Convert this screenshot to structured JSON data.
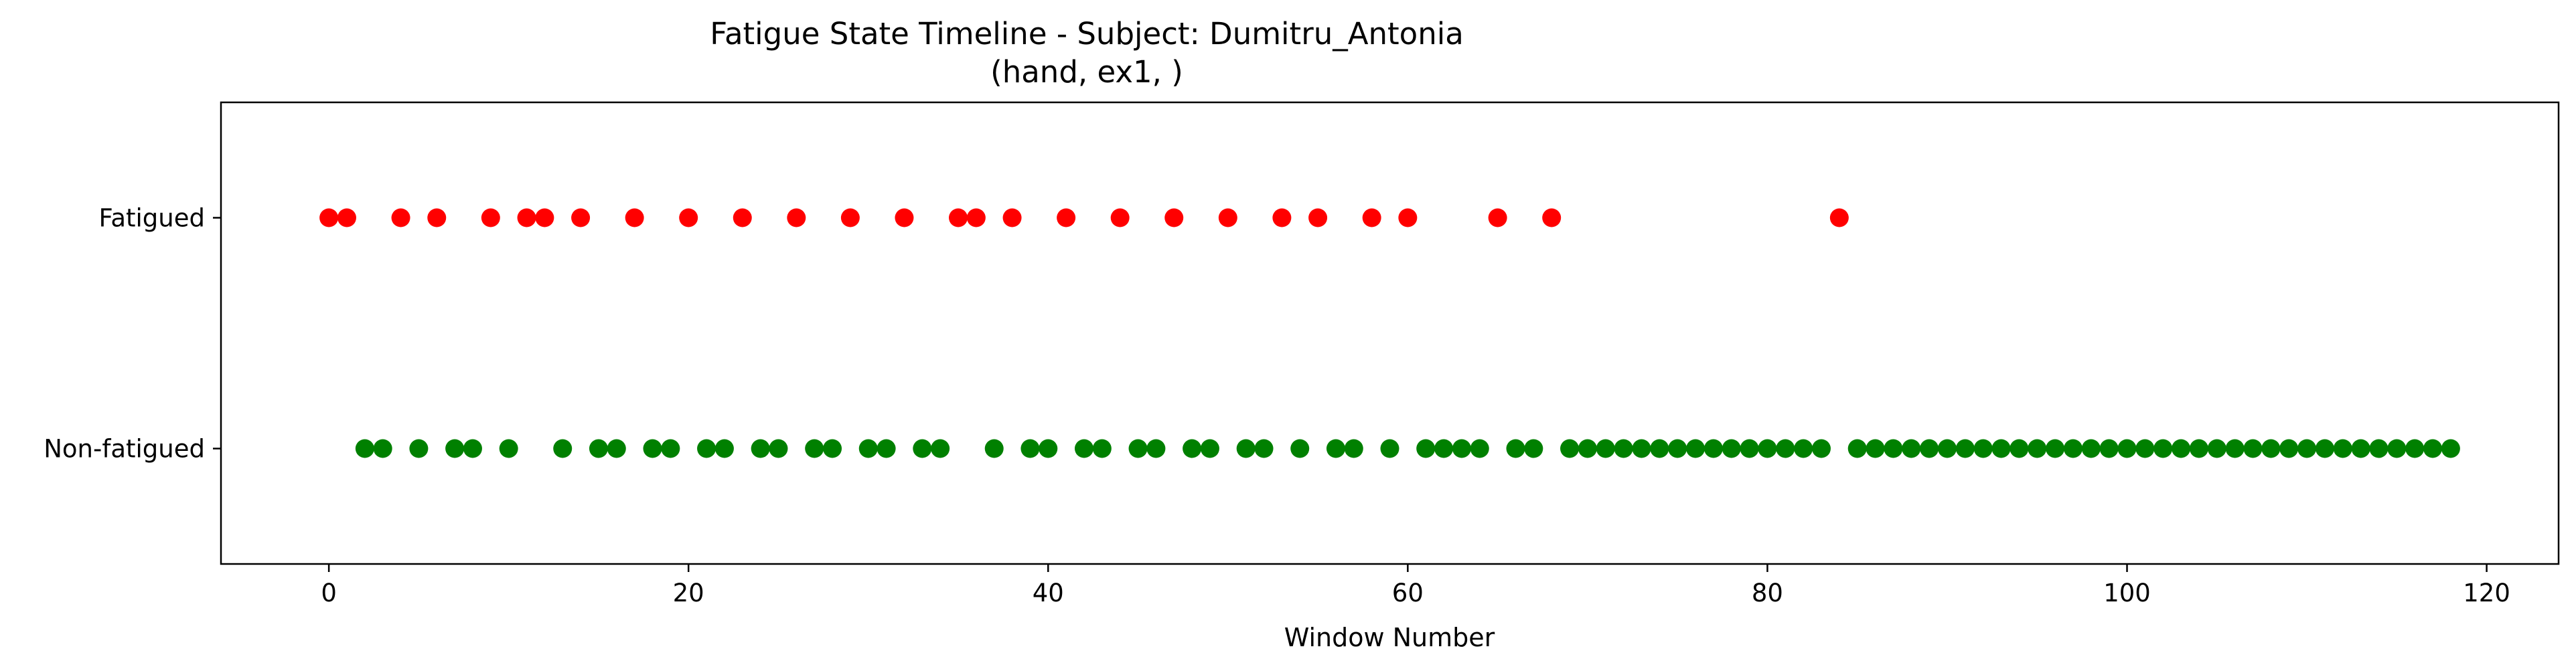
{
  "chart_data": {
    "type": "scatter",
    "title": "Fatigue State Timeline - Subject: Dumitru_Antonia",
    "subtitle": "(hand, ex1, )",
    "xlabel": "Window Number",
    "ylabel": "",
    "xlim": [
      -6,
      124
    ],
    "ylim": [
      -0.5,
      1.5
    ],
    "xticks": [
      0,
      20,
      40,
      60,
      80,
      100,
      120
    ],
    "yticks": [
      0,
      1
    ],
    "ytick_labels": [
      "Non-fatigued",
      "Fatigued"
    ],
    "grid": false,
    "series": [
      {
        "name": "Fatigued",
        "y": 1,
        "color": "#ff0000",
        "x": [
          0,
          1,
          4,
          6,
          9,
          11,
          12,
          14,
          17,
          20,
          23,
          26,
          29,
          32,
          35,
          36,
          38,
          41,
          44,
          47,
          50,
          53,
          55,
          58,
          60,
          65,
          68,
          84
        ]
      },
      {
        "name": "Non-fatigued",
        "y": 0,
        "color": "#008000",
        "x": [
          2,
          3,
          5,
          7,
          8,
          10,
          13,
          15,
          16,
          18,
          19,
          21,
          22,
          24,
          25,
          27,
          28,
          30,
          31,
          33,
          34,
          37,
          39,
          40,
          42,
          43,
          45,
          46,
          48,
          49,
          51,
          52,
          54,
          56,
          57,
          59,
          61,
          62,
          63,
          64,
          66,
          67,
          69,
          70,
          71,
          72,
          73,
          74,
          75,
          76,
          77,
          78,
          79,
          80,
          81,
          82,
          83,
          85,
          86,
          87,
          88,
          89,
          90,
          91,
          92,
          93,
          94,
          95,
          96,
          97,
          98,
          99,
          100,
          101,
          102,
          103,
          104,
          105,
          106,
          107,
          108,
          109,
          110,
          111,
          112,
          113,
          114,
          115,
          116,
          117,
          118
        ]
      }
    ]
  }
}
